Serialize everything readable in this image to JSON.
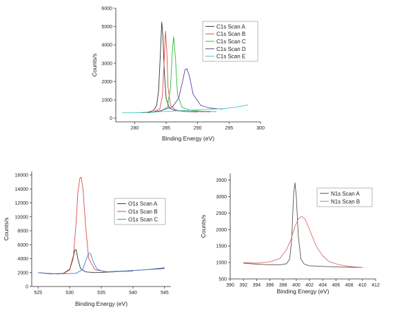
{
  "chart_data": [
    {
      "type": "line",
      "title": "",
      "xlabel": "Binding Energy (eV)",
      "ylabel": "Counts/s",
      "xlim": [
        277,
        300
      ],
      "ylim": [
        -200,
        6000
      ],
      "xticks": [
        280,
        285,
        290,
        295,
        300
      ],
      "yticks": [
        0,
        1000,
        2000,
        3000,
        4000,
        5000,
        6000
      ],
      "legend_position": "top-right",
      "series": [
        {
          "name": "C1s Scan A",
          "color": "#333333",
          "x": [
            281.0,
            282.0,
            283.0,
            283.5,
            283.8,
            284.1,
            284.3,
            284.5,
            284.7,
            285.0,
            285.5,
            286.5,
            288.0,
            290.0
          ],
          "y": [
            300,
            330,
            420,
            700,
            1500,
            3600,
            5250,
            4400,
            2600,
            1100,
            550,
            420,
            370,
            340
          ]
        },
        {
          "name": "C1s Scan B",
          "color": "#e04a4a",
          "x": [
            281.5,
            283.0,
            284.0,
            284.4,
            284.7,
            284.9,
            285.1,
            285.3,
            285.7,
            286.5,
            288.0,
            290.0,
            292.0
          ],
          "y": [
            300,
            340,
            520,
            1200,
            3200,
            4750,
            3700,
            1700,
            700,
            450,
            380,
            360,
            350
          ]
        },
        {
          "name": "C1s Scan C",
          "color": "#2fbf2f",
          "x": [
            282.0,
            284.0,
            285.2,
            285.7,
            286.0,
            286.2,
            286.5,
            286.8,
            287.5,
            289.0,
            291.0,
            293.0
          ],
          "y": [
            300,
            360,
            600,
            1700,
            3800,
            4450,
            3200,
            1300,
            600,
            420,
            380,
            360
          ]
        },
        {
          "name": "C1s Scan D",
          "color": "#5a3fa0",
          "x": [
            282.0,
            284.0,
            286.0,
            287.0,
            287.6,
            288.0,
            288.3,
            288.7,
            289.3,
            290.5,
            292.0,
            294.0
          ],
          "y": [
            300,
            400,
            620,
            1100,
            2000,
            2650,
            2700,
            2300,
            1300,
            700,
            550,
            500
          ]
        },
        {
          "name": "C1s Scan E",
          "color": "#3cc7c7",
          "x": [
            278.0,
            280.0,
            284.0,
            288.0,
            291.0,
            294.0,
            296.0,
            298.0
          ],
          "y": [
            300,
            300,
            360,
            420,
            480,
            520,
            600,
            720
          ]
        }
      ]
    },
    {
      "type": "line",
      "title": "",
      "xlabel": "Binding Energy (eV)",
      "ylabel": "Counts/s",
      "xlim": [
        524,
        546
      ],
      "ylim": [
        0,
        16500
      ],
      "xticks": [
        525,
        530,
        535,
        540,
        545
      ],
      "yticks": [
        0,
        2000,
        4000,
        6000,
        8000,
        10000,
        12000,
        14000,
        16000
      ],
      "legend_position": "center-right",
      "series": [
        {
          "name": "O1s Scan A",
          "color": "#333333",
          "x": [
            525.0,
            527.0,
            529.0,
            530.0,
            530.5,
            530.8,
            531.0,
            531.3,
            531.7,
            532.5,
            534.0,
            537.0,
            540.0,
            542.0,
            545.0
          ],
          "y": [
            2000,
            1850,
            1850,
            2400,
            3900,
            5200,
            5300,
            4000,
            2600,
            2100,
            2000,
            2100,
            2300,
            2400,
            2600
          ]
        },
        {
          "name": "O1s Scan B",
          "color": "#e04a4a",
          "x": [
            525.0,
            527.0,
            529.0,
            530.0,
            530.6,
            531.0,
            531.3,
            531.6,
            531.8,
            532.1,
            532.5,
            533.0,
            534.0,
            536.0,
            540.0
          ],
          "y": [
            2000,
            1800,
            1900,
            2500,
            4500,
            9000,
            13500,
            15500,
            15700,
            14000,
            9000,
            4000,
            2400,
            2100,
            2200
          ]
        },
        {
          "name": "O1s Scan C",
          "color": "#3a7fd4",
          "x": [
            525.0,
            528.0,
            531.0,
            532.0,
            532.6,
            533.0,
            533.3,
            533.7,
            534.3,
            535.5,
            538.0,
            542.0,
            545.0
          ],
          "y": [
            2000,
            1800,
            1900,
            2400,
            3800,
            4800,
            4700,
            3600,
            2500,
            2100,
            2200,
            2400,
            2700
          ]
        }
      ]
    },
    {
      "type": "line",
      "title": "",
      "xlabel": "Binding Energy (eV)",
      "ylabel": "Counts/s",
      "xlim": [
        390,
        412
      ],
      "ylim": [
        500,
        3700
      ],
      "xticks": [
        390,
        392,
        394,
        396,
        398,
        400,
        402,
        404,
        406,
        408,
        410,
        412
      ],
      "yticks": [
        500,
        1000,
        1500,
        2000,
        2500,
        3000,
        3500
      ],
      "legend_position": "top-right",
      "series": [
        {
          "name": "N1s Scan A",
          "color": "#555555",
          "x": [
            392.0,
            394.0,
            396.0,
            397.5,
            398.5,
            399.0,
            399.3,
            399.6,
            399.8,
            400.0,
            400.3,
            400.7,
            401.2,
            402.0,
            404.0,
            407.0,
            410.0
          ],
          "y": [
            980,
            950,
            930,
            930,
            960,
            1100,
            1700,
            3100,
            3420,
            3000,
            1800,
            1100,
            950,
            900,
            880,
            860,
            850
          ]
        },
        {
          "name": "N1s Scan B",
          "color": "#e06a6a",
          "x": [
            392.0,
            394.0,
            396.0,
            397.5,
            398.5,
            399.2,
            399.8,
            400.3,
            400.8,
            401.3,
            402.0,
            403.0,
            404.0,
            405.0,
            406.5,
            408.0,
            410.0
          ],
          "y": [
            1000,
            980,
            1020,
            1120,
            1380,
            1700,
            2100,
            2320,
            2400,
            2330,
            2000,
            1500,
            1200,
            1020,
            930,
            880,
            850
          ]
        }
      ]
    }
  ]
}
